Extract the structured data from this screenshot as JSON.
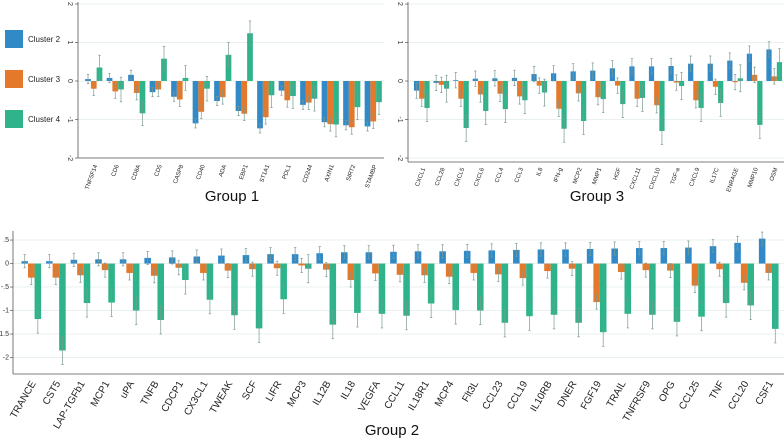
{
  "colors": {
    "Cluster 2": "#3189c5",
    "Cluster 3": "#e5792b",
    "Cluster 4": "#2fb38a",
    "error": "#7a9a90",
    "grid": "#e9f1ef"
  },
  "legend": [
    "Cluster 2",
    "Cluster 3",
    "Cluster 4"
  ],
  "chart_data": [
    {
      "type": "bar",
      "title": "Group 1",
      "ylim": [
        -2,
        2
      ],
      "yticks": [
        "2",
        "1",
        "0",
        "-1",
        "-2"
      ],
      "ytick_values": [
        2,
        1,
        0,
        -1,
        -2
      ],
      "categories": [
        "TNFSF14",
        "CD6",
        "CD8A",
        "CD5",
        "CASP8",
        "CD40",
        "ADA",
        "EBP1",
        "ST1A1",
        "PDL1",
        "CD244",
        "AXIN1",
        "SIRT2",
        "STAMBP"
      ],
      "series": [
        {
          "name": "Cluster 2",
          "values": [
            0.05,
            0.08,
            0.16,
            -0.29,
            -0.41,
            -1.1,
            -0.52,
            -0.78,
            -1.23,
            -0.25,
            -0.62,
            -1.07,
            -1.15,
            -1.18
          ],
          "error": 0.12
        },
        {
          "name": "Cluster 3",
          "values": [
            -0.2,
            -0.27,
            -0.31,
            -0.22,
            -0.48,
            -0.8,
            -0.42,
            -0.85,
            -0.94,
            -0.5,
            -0.56,
            -1.12,
            -1.2,
            -1.05
          ],
          "error": 0.18
        },
        {
          "name": "Cluster 4",
          "values": [
            0.35,
            -0.22,
            -0.84,
            0.58,
            0.08,
            -0.2,
            0.68,
            1.24,
            -0.37,
            -0.39,
            -0.46,
            -1.13,
            -0.68,
            -0.55
          ],
          "error": 0.32
        }
      ]
    },
    {
      "type": "bar",
      "title": "Group 3",
      "ylim": [
        -2,
        2
      ],
      "yticks": [
        "2",
        "1",
        "0",
        "-1",
        "-2"
      ],
      "ytick_values": [
        2,
        1,
        0,
        -1,
        -2
      ],
      "categories": [
        "CXCL1",
        "CCL28",
        "CXCL5",
        "CXCL6",
        "CCL4",
        "CCL3",
        "IL8",
        "IFN-g",
        "MCP2",
        "MMP1",
        "HGF",
        "CXCL11",
        "CXCL10",
        "TGF-a",
        "CXCL9",
        "IL17C",
        "ENRAGE",
        "MMP10",
        "OSM"
      ],
      "series": [
        {
          "name": "Cluster 2",
          "values": [
            -0.25,
            -0.05,
            0.02,
            0.06,
            0.07,
            0.08,
            0.18,
            0.2,
            0.25,
            0.27,
            0.33,
            0.38,
            0.38,
            0.39,
            0.45,
            0.45,
            0.53,
            0.71,
            0.82
          ],
          "error": 0.2
        },
        {
          "name": "Cluster 3",
          "values": [
            -0.46,
            -0.1,
            -0.46,
            -0.35,
            -0.33,
            -0.4,
            -0.12,
            -0.72,
            -0.32,
            -0.42,
            -0.12,
            -0.46,
            -0.63,
            -0.04,
            -0.5,
            -0.15,
            -0.03,
            0.16,
            0.12
          ],
          "error": 0.2
        },
        {
          "name": "Cluster 4",
          "values": [
            -0.7,
            -0.2,
            -1.22,
            -0.78,
            -0.73,
            -0.5,
            -0.3,
            -1.24,
            -1.04,
            -0.47,
            -0.6,
            -0.44,
            -1.3,
            -0.13,
            -0.7,
            -0.57,
            0.07,
            -1.14,
            0.49
          ],
          "error": 0.35
        }
      ]
    },
    {
      "type": "bar",
      "title": "Group 2",
      "ylim": [
        -2.35,
        0.65
      ],
      "yticks": [
        ".5",
        "0",
        "-.5",
        "-1",
        "-1.5",
        "-2"
      ],
      "ytick_values": [
        0.5,
        0,
        -0.5,
        -1,
        -1.5,
        -2
      ],
      "categories": [
        "TRANCE",
        "CST5",
        "LAP-TGFb1",
        "MCP1",
        "uPA",
        "TNFB",
        "CDCP1",
        "CX3CL1",
        "TWEAK",
        "SCF",
        "LIFR",
        "MCP3",
        "IL12B",
        "IL18",
        "VEGFA",
        "CCL11",
        "IL18R1",
        "MCP4",
        "Flt3L",
        "CCL23",
        "CCL19",
        "IL10RB",
        "DNER",
        "FGF19",
        "TRAIL",
        "TNFRSF9",
        "OPG",
        "CCL25",
        "TNF",
        "CCL20",
        "CSF1"
      ],
      "series": [
        {
          "name": "Cluster 2",
          "values": [
            0.05,
            0.05,
            0.08,
            0.09,
            0.09,
            0.12,
            0.13,
            0.15,
            0.17,
            0.18,
            0.2,
            0.2,
            0.22,
            0.24,
            0.24,
            0.25,
            0.26,
            0.26,
            0.27,
            0.28,
            0.29,
            0.3,
            0.3,
            0.31,
            0.32,
            0.33,
            0.33,
            0.34,
            0.37,
            0.44,
            0.53
          ],
          "error": 0.14
        },
        {
          "name": "Cluster 3",
          "values": [
            -0.3,
            -0.3,
            -0.25,
            -0.14,
            -0.2,
            -0.26,
            -0.09,
            -0.2,
            -0.15,
            -0.12,
            -0.1,
            -0.04,
            -0.13,
            -0.35,
            -0.21,
            -0.24,
            -0.25,
            -0.28,
            -0.2,
            -0.23,
            -0.31,
            -0.16,
            -0.11,
            -0.82,
            -0.18,
            -0.14,
            -0.15,
            -0.47,
            -0.12,
            -0.41,
            -0.2
          ],
          "error": 0.15
        },
        {
          "name": "Cluster 4",
          "values": [
            -1.18,
            -1.85,
            -0.84,
            -0.83,
            -1.0,
            -1.2,
            -0.35,
            -0.77,
            -1.1,
            -1.38,
            -0.76,
            -0.11,
            -1.3,
            -1.05,
            -1.07,
            -1.11,
            -0.85,
            -0.99,
            -1.0,
            -1.26,
            -1.12,
            -1.09,
            -1.26,
            -1.46,
            -1.07,
            -1.09,
            -1.24,
            -1.13,
            -0.84,
            -0.89,
            -1.39
          ],
          "error": 0.3
        }
      ]
    }
  ]
}
